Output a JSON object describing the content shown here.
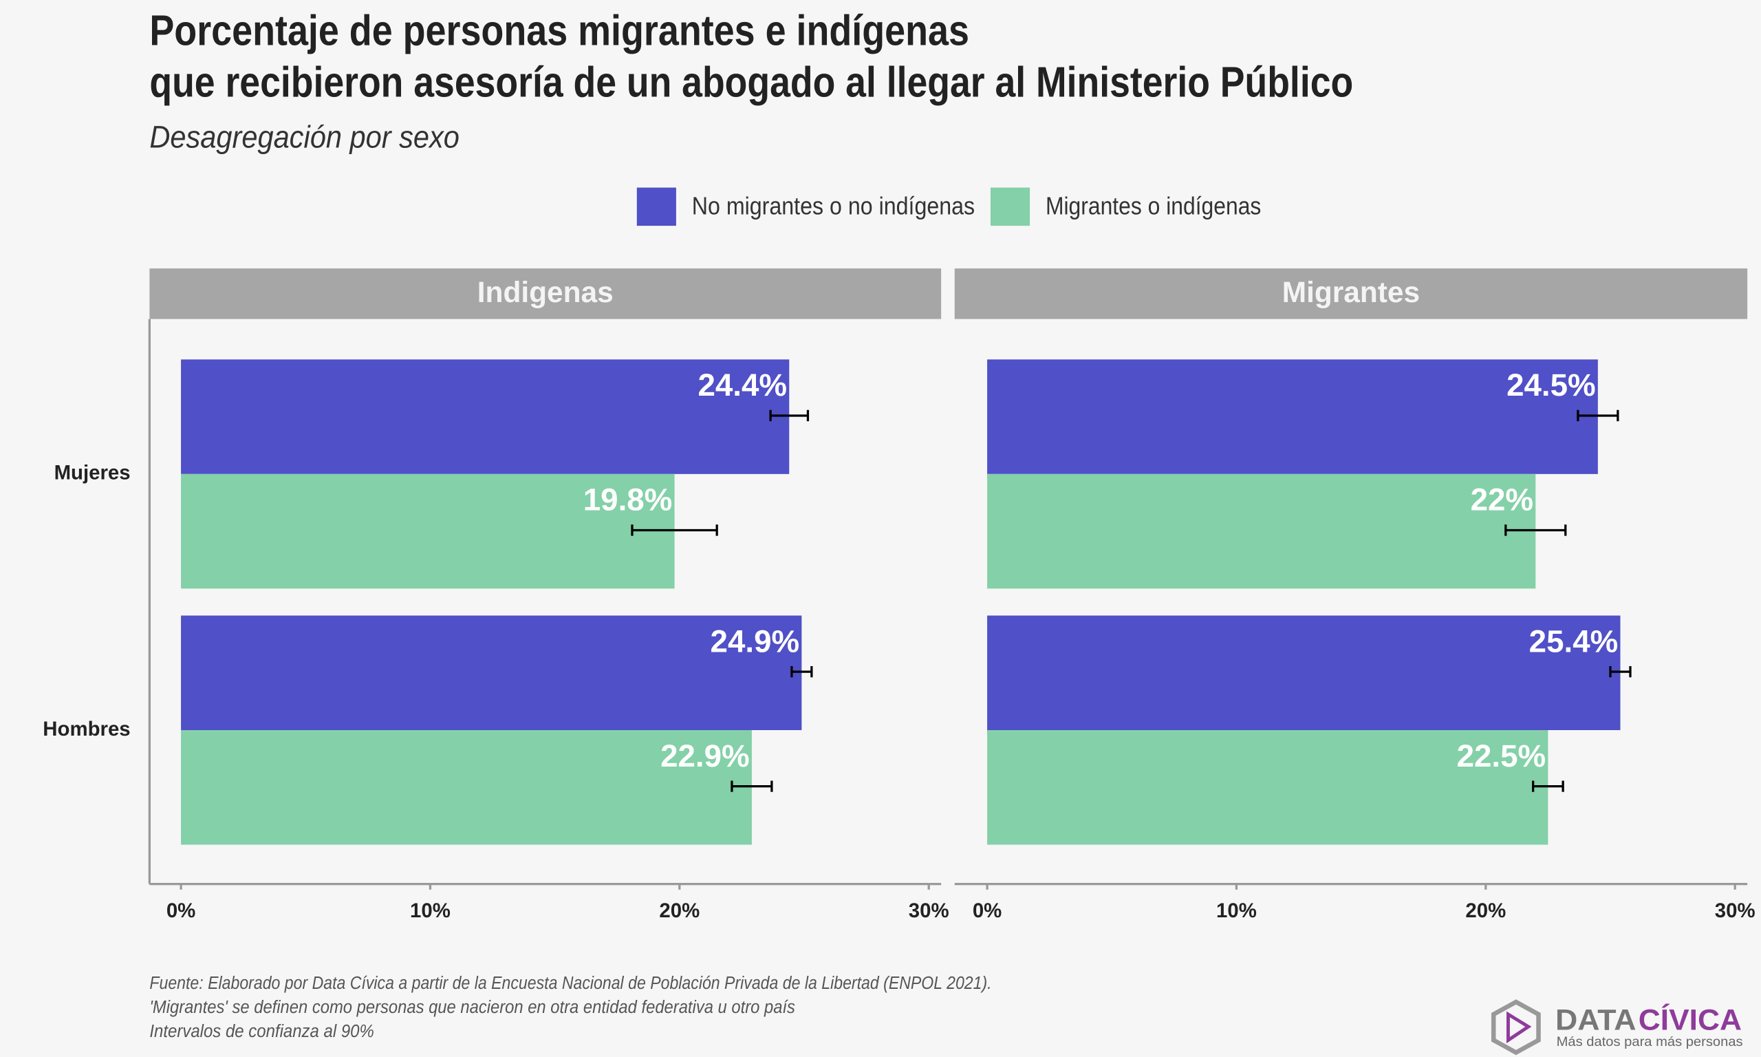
{
  "chart_data": {
    "type": "bar",
    "title": [
      "Porcentaje de personas migrantes e indígenas",
      "que recibieron asesoría de un abogado al llegar al Ministerio Público"
    ],
    "subtitle": "Desagregación por sexo",
    "categories": [
      "Mujeres",
      "Hombres"
    ],
    "series": [
      {
        "name": "No migrantes o no indígenas",
        "color": "#5050c8"
      },
      {
        "name": "Migrantes o indígenas",
        "color": "#84d0a8"
      }
    ],
    "facets": [
      {
        "title": "Indigenas",
        "series": [
          {
            "values": [
              24.4,
              24.9
            ],
            "errors": [
              0.75,
              0.4
            ],
            "value_labels": [
              "24.4%",
              "24.9%"
            ]
          },
          {
            "values": [
              19.8,
              22.9
            ],
            "errors": [
              1.7,
              0.8
            ],
            "value_labels": [
              "19.8%",
              "22.9%"
            ]
          }
        ]
      },
      {
        "title": "Migrantes",
        "series": [
          {
            "values": [
              24.5,
              25.4
            ],
            "errors": [
              0.8,
              0.4
            ],
            "value_labels": [
              "24.5%",
              "25.4%"
            ]
          },
          {
            "values": [
              22,
              22.5
            ],
            "errors": [
              1.2,
              0.6
            ],
            "value_labels": [
              "22%",
              "22.5%"
            ]
          }
        ]
      }
    ],
    "xlim": [
      0,
      30
    ],
    "xticks": [
      {
        "value": 0,
        "label": "0%"
      },
      {
        "value": 10,
        "label": "10%"
      },
      {
        "value": 20,
        "label": "20%"
      },
      {
        "value": 30,
        "label": "30%"
      }
    ],
    "notes": [
      "Fuente: Elaborado por Data Cívica a partir de la Encuesta Nacional de Población Privada de la Libertad (ENPOL 2021).",
      "'Migrantes' se definen como personas que nacieron en otra entidad federativa u otro país",
      "Intervalos de confianza al 90%"
    ]
  },
  "logo": {
    "name_1": "DATA",
    "name_2": "CÍVICA",
    "tagline": "Más datos para más personas"
  }
}
